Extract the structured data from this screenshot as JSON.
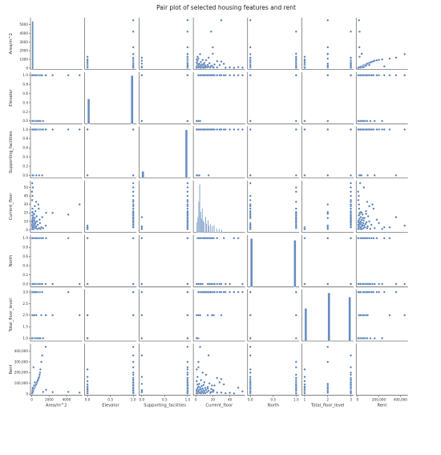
{
  "chart_data": {
    "type": "scatter",
    "title": "Pair plot of selected housing features and rent",
    "color": "#4a78b4",
    "variables": [
      "Area/m^2",
      "Elevator",
      "Supporting_facilities",
      "Current_floor",
      "North",
      "Total_floor_level",
      "Rent"
    ],
    "axes": [
      {
        "label": "Area/m^2",
        "range": [
          -150,
          5800
        ],
        "ticks": [
          0,
          2000,
          4000
        ],
        "tick_labels": [
          "0",
          "2000",
          "4000"
        ],
        "ytick_labels": [
          "0",
          "1000",
          "2000",
          "3000",
          "4000",
          "5000"
        ],
        "yticks": [
          0,
          1000,
          2000,
          3000,
          4000,
          5000
        ]
      },
      {
        "label": "Elevator",
        "range": [
          -0.06,
          1.07
        ],
        "ticks": [
          0.0,
          0.5,
          1.0
        ],
        "tick_labels": [
          "0.0",
          "0.5",
          "1.0"
        ],
        "yticks": [
          0,
          0.2,
          0.4,
          0.6,
          0.8,
          1.0
        ],
        "ytick_labels": [
          "0.0",
          "0.2",
          "0.4",
          "0.6",
          "0.8",
          "1.0"
        ]
      },
      {
        "label": "Supporting_facilities",
        "range": [
          -0.06,
          1.07
        ],
        "ticks": [
          0.0,
          0.5,
          1.0
        ],
        "tick_labels": [
          "0.0",
          "0.5",
          "1.0"
        ],
        "yticks": [
          0,
          0.2,
          0.4,
          0.6,
          0.8,
          1.0
        ],
        "ytick_labels": [
          "0.0",
          "0.2",
          "0.4",
          "0.6",
          "0.8",
          "1.0"
        ]
      },
      {
        "label": "Current_floor",
        "range": [
          -3,
          58
        ],
        "ticks": [
          0,
          20,
          40
        ],
        "tick_labels": [
          "0",
          "20",
          "40"
        ],
        "yticks": [
          0,
          10,
          20,
          30,
          40,
          50
        ],
        "ytick_labels": [
          "0",
          "10",
          "20",
          "30",
          "40",
          "50"
        ]
      },
      {
        "label": "North",
        "range": [
          -0.06,
          1.07
        ],
        "ticks": [
          0.0,
          0.5,
          1.0
        ],
        "tick_labels": [
          "0.0",
          "0.5",
          "1.0"
        ],
        "yticks": [
          0,
          0.2,
          0.4,
          0.6,
          0.8,
          1.0
        ],
        "ytick_labels": [
          "0.0",
          "0.2",
          "0.4",
          "0.6",
          "0.8",
          "1.0"
        ]
      },
      {
        "label": "Total_floor_level",
        "range": [
          0.88,
          3.12
        ],
        "ticks": [
          1,
          2,
          3
        ],
        "tick_labels": [
          "1",
          "2",
          "3"
        ],
        "yticks": [
          1.0,
          1.5,
          2.0,
          2.5,
          3.0
        ],
        "ytick_labels": [
          "1.0",
          "1.5",
          "2.0",
          "2.5",
          "3.0"
        ]
      },
      {
        "label": "Rent",
        "range": [
          -12000,
          470000
        ],
        "ticks": [
          0,
          200000,
          400000
        ],
        "tick_labels": [
          "0",
          "200,000",
          "400,000"
        ],
        "yticks": [
          0,
          100000,
          200000,
          300000,
          400000
        ],
        "ytick_labels": [
          "0",
          "100,000",
          "200,000",
          "300,000",
          "400,000"
        ]
      }
    ],
    "records": [
      [
        5500,
        1,
        1,
        30,
        0,
        2,
        14000
      ],
      [
        4200,
        1,
        1,
        18,
        1,
        3,
        20000
      ],
      [
        2400,
        1,
        1,
        20,
        0,
        2,
        18000
      ],
      [
        1650,
        1,
        1,
        20,
        1,
        2,
        40000
      ],
      [
        1600,
        1,
        1,
        5,
        0,
        2,
        440000
      ],
      [
        1300,
        0,
        1,
        2,
        1,
        1,
        20000
      ],
      [
        1200,
        1,
        0,
        15,
        0,
        3,
        360000
      ],
      [
        1100,
        1,
        1,
        3,
        1,
        2,
        300000
      ],
      [
        1000,
        0,
        1,
        1,
        0,
        1,
        230000
      ],
      [
        950,
        1,
        1,
        8,
        0,
        3,
        200000
      ],
      [
        900,
        1,
        1,
        12,
        1,
        3,
        180000
      ],
      [
        850,
        0,
        0,
        2,
        0,
        1,
        160000
      ],
      [
        800,
        1,
        1,
        25,
        1,
        3,
        150000
      ],
      [
        750,
        1,
        1,
        30,
        0,
        3,
        140000
      ],
      [
        700,
        1,
        1,
        6,
        1,
        3,
        130000
      ],
      [
        650,
        0,
        1,
        1,
        0,
        1,
        120000
      ],
      [
        600,
        1,
        1,
        10,
        1,
        3,
        110000
      ],
      [
        560,
        1,
        1,
        16,
        0,
        3,
        100000
      ],
      [
        520,
        1,
        0,
        4,
        1,
        2,
        95000
      ],
      [
        480,
        0,
        1,
        2,
        0,
        1,
        90000
      ],
      [
        450,
        1,
        1,
        9,
        1,
        3,
        85000
      ],
      [
        420,
        1,
        1,
        22,
        0,
        3,
        80000
      ],
      [
        400,
        1,
        1,
        7,
        1,
        3,
        75000
      ],
      [
        380,
        0,
        1,
        3,
        0,
        1,
        70000
      ],
      [
        360,
        1,
        1,
        14,
        1,
        3,
        66000
      ],
      [
        340,
        1,
        1,
        5,
        0,
        2,
        62000
      ],
      [
        320,
        1,
        1,
        11,
        1,
        3,
        58000
      ],
      [
        300,
        0,
        1,
        2,
        0,
        1,
        55000
      ],
      [
        280,
        1,
        1,
        8,
        1,
        3,
        52000
      ],
      [
        260,
        1,
        1,
        18,
        0,
        3,
        48000
      ],
      [
        240,
        1,
        1,
        6,
        1,
        3,
        45000
      ],
      [
        220,
        0,
        1,
        1,
        0,
        1,
        42000
      ],
      [
        200,
        1,
        1,
        12,
        1,
        3,
        40000
      ],
      [
        190,
        1,
        0,
        4,
        0,
        2,
        38000
      ],
      [
        180,
        1,
        1,
        9,
        1,
        3,
        35000
      ],
      [
        170,
        0,
        1,
        2,
        0,
        1,
        33000
      ],
      [
        160,
        1,
        1,
        15,
        1,
        3,
        31000
      ],
      [
        150,
        1,
        1,
        7,
        0,
        3,
        29000
      ],
      [
        140,
        1,
        1,
        10,
        1,
        3,
        27000
      ],
      [
        130,
        0,
        1,
        3,
        0,
        1,
        25000
      ],
      [
        120,
        1,
        1,
        20,
        1,
        3,
        23000
      ],
      [
        110,
        1,
        1,
        6,
        0,
        3,
        21000
      ],
      [
        100,
        1,
        1,
        13,
        1,
        3,
        19000
      ],
      [
        95,
        0,
        0,
        2,
        0,
        1,
        17000
      ],
      [
        90,
        1,
        1,
        8,
        1,
        3,
        16000
      ],
      [
        85,
        1,
        1,
        25,
        0,
        3,
        15000
      ],
      [
        80,
        1,
        1,
        5,
        1,
        2,
        14000
      ],
      [
        75,
        0,
        1,
        1,
        0,
        1,
        13000
      ],
      [
        70,
        1,
        1,
        17,
        1,
        3,
        12000
      ],
      [
        65,
        1,
        1,
        4,
        0,
        3,
        11000
      ],
      [
        60,
        1,
        1,
        11,
        1,
        3,
        10000
      ],
      [
        55,
        0,
        1,
        2,
        0,
        1,
        9000
      ],
      [
        50,
        1,
        1,
        9,
        1,
        3,
        8500
      ],
      [
        45,
        1,
        1,
        35,
        0,
        3,
        8000
      ],
      [
        40,
        1,
        1,
        6,
        1,
        3,
        7500
      ],
      [
        35,
        0,
        1,
        1,
        0,
        1,
        7000
      ],
      [
        30,
        1,
        1,
        45,
        1,
        3,
        6500
      ],
      [
        60,
        1,
        1,
        55,
        0,
        3,
        25000
      ],
      [
        120,
        1,
        1,
        50,
        1,
        3,
        60000
      ],
      [
        80,
        1,
        1,
        40,
        0,
        3,
        12000
      ],
      [
        200,
        1,
        1,
        3,
        1,
        3,
        250000
      ],
      [
        350,
        1,
        1,
        28,
        0,
        3,
        110000
      ],
      [
        500,
        1,
        1,
        33,
        1,
        3,
        90000
      ],
      [
        90,
        0,
        0,
        1,
        0,
        2,
        30000
      ],
      [
        150,
        0,
        1,
        5,
        1,
        2,
        45000
      ],
      [
        110,
        1,
        1,
        14,
        0,
        2,
        52000
      ],
      [
        70,
        1,
        1,
        21,
        1,
        2,
        33000
      ],
      [
        130,
        0,
        1,
        3,
        0,
        2,
        28000
      ],
      [
        260,
        1,
        1,
        19,
        1,
        2,
        80000
      ]
    ],
    "diagonal_histograms": [
      {
        "variable": "Area/m^2",
        "bins": [
          [
            0,
            200,
            700
          ]
        ]
      },
      {
        "variable": "Elevator",
        "bins": [
          [
            0.0,
            0.05,
            360
          ],
          [
            0.95,
            1.0,
            700
          ]
        ]
      },
      {
        "variable": "Supporting_facilities",
        "bins": [
          [
            0.0,
            0.05,
            140
          ],
          [
            0.95,
            1.0,
            1000
          ]
        ]
      },
      {
        "variable": "Current_floor",
        "bins": [
          [
            1,
            2,
            30
          ],
          [
            2,
            3,
            45
          ],
          [
            3,
            4,
            90
          ],
          [
            4,
            5,
            140
          ],
          [
            5,
            6,
            60
          ],
          [
            6,
            7,
            40
          ],
          [
            7,
            8,
            70
          ],
          [
            8,
            9,
            35
          ],
          [
            9,
            10,
            30
          ],
          [
            11,
            12,
            45
          ],
          [
            12,
            13,
            25
          ],
          [
            14,
            15,
            35
          ],
          [
            15,
            16,
            20
          ],
          [
            17,
            18,
            25
          ],
          [
            19,
            20,
            18
          ],
          [
            21,
            22,
            22
          ],
          [
            24,
            25,
            12
          ],
          [
            27,
            28,
            10
          ],
          [
            30,
            31,
            8
          ]
        ]
      },
      {
        "variable": "North",
        "bins": [
          [
            0.0,
            0.05,
            560
          ],
          [
            0.95,
            1.0,
            540
          ]
        ]
      },
      {
        "variable": "Total_floor_level",
        "bins": [
          [
            1.0,
            1.1,
            460
          ],
          [
            2.0,
            2.1,
            680
          ],
          [
            2.9,
            3.0,
            620
          ]
        ]
      },
      {
        "variable": "Rent",
        "bins": [
          [
            0,
            20000,
            0
          ]
        ]
      }
    ]
  }
}
